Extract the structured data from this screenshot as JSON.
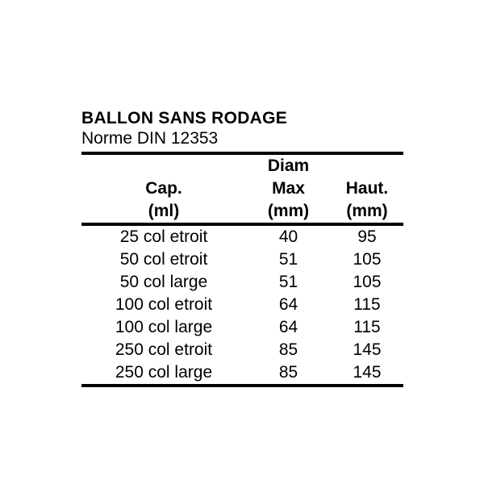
{
  "page": {
    "title": "BALLON SANS RODAGE",
    "subtitle": "Norme DIN 12353"
  },
  "table": {
    "header": {
      "diam_line1": "Diam",
      "cap": "Cap.",
      "max": "Max",
      "haut": "Haut.",
      "cap_unit": "(ml)",
      "max_unit": "(mm)",
      "haut_unit": "(mm)"
    },
    "rows": [
      {
        "cap": "25 col etroit",
        "diam_max": "40",
        "haut": "95"
      },
      {
        "cap": "50 col etroit",
        "diam_max": "51",
        "haut": "105"
      },
      {
        "cap": "50 col large",
        "diam_max": "51",
        "haut": "105"
      },
      {
        "cap": "100 col etroit",
        "diam_max": "64",
        "haut": "115"
      },
      {
        "cap": "100 col large",
        "diam_max": "64",
        "haut": "115"
      },
      {
        "cap": "250 col etroit",
        "diam_max": "85",
        "haut": "145"
      },
      {
        "cap": "250 col large",
        "diam_max": "85",
        "haut": "145"
      }
    ]
  },
  "colors": {
    "text": "#000000",
    "background": "#ffffff",
    "rule": "#000000"
  }
}
